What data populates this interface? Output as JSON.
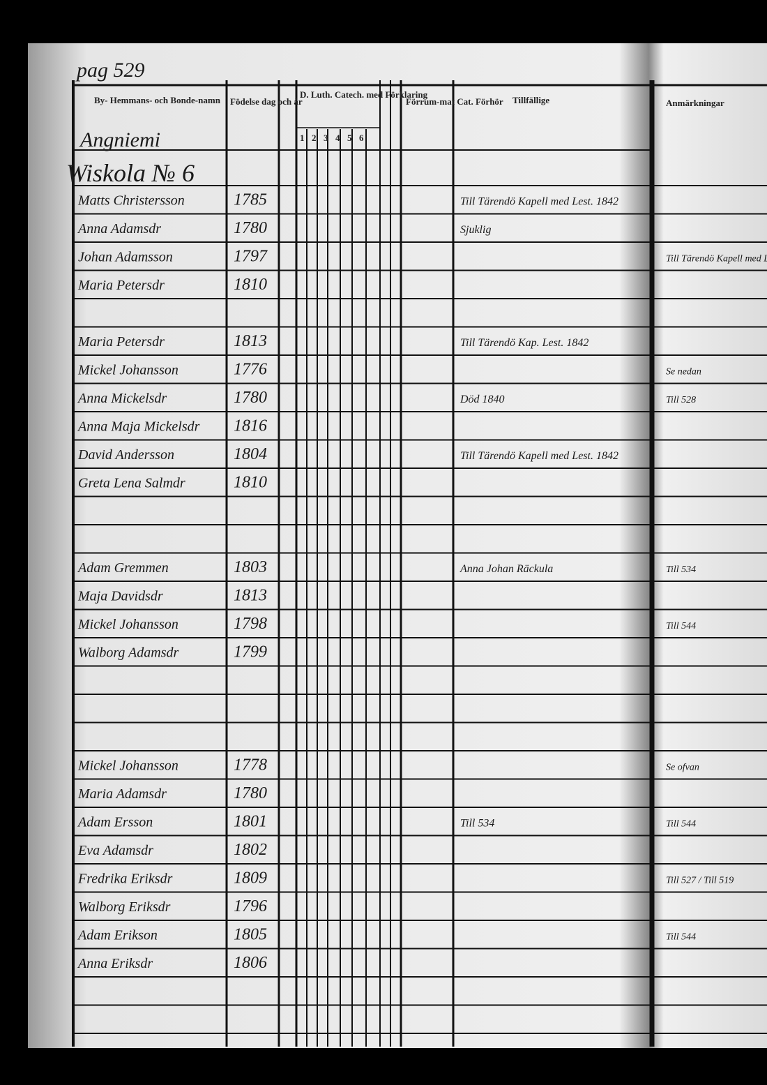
{
  "header": {
    "page_number": "pag 529",
    "columns": {
      "names": "By- Hemmans- och Bonde-namn",
      "birth": "Födelse dag och år",
      "catechism": "D. Luth. Catech. med Förklaring",
      "catechism_parts": [
        "1",
        "2",
        "3",
        "4",
        "5",
        "6"
      ],
      "hearings": "Förrum-mat Cat. Förhör",
      "temporary": "Tillfällige",
      "remarks": "Anmärkningar"
    }
  },
  "village": "Angniemi",
  "farm": "Wiskola № 6",
  "rows": [
    {
      "name": "Matts Christersson",
      "year": "1785",
      "note": "Till Tärendö Kapell med Lest. 1842"
    },
    {
      "name": "Anna Adamsdr",
      "year": "1780",
      "note": "Sjuklig"
    },
    {
      "name": "Johan Adamsson",
      "year": "1797",
      "remark": "Till Tärendö Kapell med Lest."
    },
    {
      "name": "Maria Petersdr",
      "year": "1810"
    },
    {
      "name": "Maria Petersdr",
      "year": "1813",
      "note": "Till Tärendö Kap. Lest. 1842"
    },
    {
      "name": "Mickel Johansson",
      "year": "1776",
      "remark": "Se nedan"
    },
    {
      "name": "Anna Mickelsdr",
      "year": "1780",
      "note": "Död 1840",
      "remark": "Till 528"
    },
    {
      "name": "Anna Maja Mickelsdr",
      "year": "1816"
    },
    {
      "name": "David Andersson",
      "year": "1804",
      "note": "Till Tärendö Kapell med Lest. 1842"
    },
    {
      "name": "Greta Lena Salmdr",
      "year": "1810"
    },
    {
      "name": "Adam Gremmen",
      "year": "1803",
      "note": "Anna Johan Räckula",
      "remark": "Till 534"
    },
    {
      "name": "Maja Davidsdr",
      "year": "1813"
    },
    {
      "name": "Mickel Johansson",
      "year": "1798",
      "remark": "Till 544"
    },
    {
      "name": "Walborg Adamsdr",
      "year": "1799"
    },
    {
      "name": "Mickel Johansson",
      "year": "1778",
      "remark": "Se ofvan"
    },
    {
      "name": "Maria Adamsdr",
      "year": "1780"
    },
    {
      "name": "Adam Ersson",
      "year": "1801",
      "note": "Till 534",
      "remark": "Till 544"
    },
    {
      "name": "Eva Adamsdr",
      "year": "1802"
    },
    {
      "name": "Fredrika Eriksdr",
      "year": "1809",
      "remark": "Till 527 / Till 519"
    },
    {
      "name": "Walborg Eriksdr",
      "year": "1796"
    },
    {
      "name": "Adam Erikson",
      "year": "1805",
      "remark": "Till 544"
    },
    {
      "name": "Anna Eriksdr",
      "year": "1806"
    }
  ]
}
